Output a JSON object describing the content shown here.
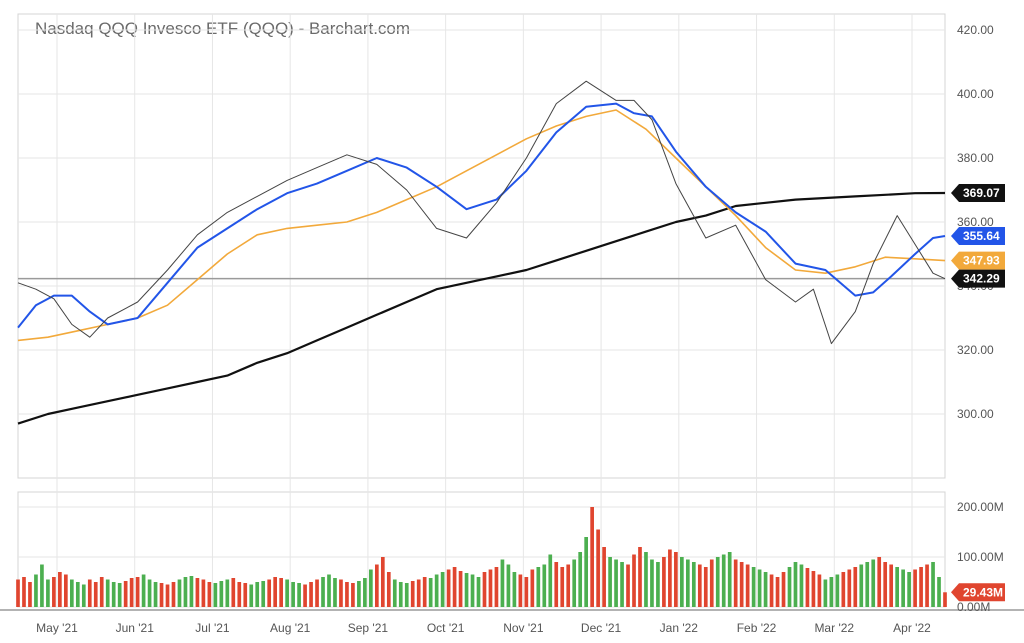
{
  "chart_data": {
    "type": "line",
    "title": "Nasdaq QQQ Invesco ETF (QQQ) - Barchart.com",
    "price_axis": {
      "ylim": [
        280,
        425
      ],
      "ticks": [
        "420.00",
        "400.00",
        "380.00",
        "360.00",
        "340.00",
        "320.00",
        "300.00"
      ]
    },
    "volume_axis": {
      "ylim": [
        0,
        230
      ],
      "unit": "M",
      "ticks": [
        "200.00M",
        "100.00M",
        "0.00M"
      ]
    },
    "x_labels": [
      "May '21",
      "Jun '21",
      "Jul '21",
      "Aug '21",
      "Sep '21",
      "Oct '21",
      "Nov '21",
      "Dec '21",
      "Jan '22",
      "Feb '22",
      "Mar '22",
      "Apr '22"
    ],
    "last_values": [
      {
        "label": "369.07",
        "color": "#111111"
      },
      {
        "label": "355.64",
        "color": "#2255e8"
      },
      {
        "label": "347.93",
        "color": "#f2a93b"
      },
      {
        "label": "342.29",
        "color": "#111111"
      },
      {
        "label": "29.43M",
        "color": "#e0452f"
      }
    ],
    "reference_line": 342.29,
    "series": [
      {
        "color": "#111111",
        "points": [
          [
            0,
            297
          ],
          [
            5,
            300
          ],
          [
            10,
            302
          ],
          [
            15,
            304
          ],
          [
            20,
            306
          ],
          [
            25,
            308
          ],
          [
            30,
            310
          ],
          [
            35,
            312
          ],
          [
            40,
            316
          ],
          [
            45,
            319
          ],
          [
            50,
            323
          ],
          [
            55,
            327
          ],
          [
            60,
            331
          ],
          [
            65,
            335
          ],
          [
            70,
            339
          ],
          [
            75,
            341
          ],
          [
            80,
            343
          ],
          [
            85,
            345
          ],
          [
            90,
            348
          ],
          [
            95,
            351
          ],
          [
            100,
            354
          ],
          [
            105,
            357
          ],
          [
            110,
            360
          ],
          [
            115,
            362
          ],
          [
            120,
            365
          ],
          [
            125,
            366
          ],
          [
            130,
            367
          ],
          [
            135,
            367.5
          ],
          [
            140,
            368
          ],
          [
            145,
            368.5
          ],
          [
            150,
            369
          ],
          [
            155,
            369.07
          ]
        ]
      },
      {
        "color": "#f2a93b",
        "points": [
          [
            0,
            323
          ],
          [
            5,
            324
          ],
          [
            10,
            326
          ],
          [
            15,
            328
          ],
          [
            20,
            330
          ],
          [
            25,
            334
          ],
          [
            30,
            342
          ],
          [
            35,
            350
          ],
          [
            40,
            356
          ],
          [
            45,
            358
          ],
          [
            50,
            359
          ],
          [
            55,
            360
          ],
          [
            60,
            363
          ],
          [
            65,
            367
          ],
          [
            70,
            371
          ],
          [
            75,
            376
          ],
          [
            80,
            381
          ],
          [
            85,
            386
          ],
          [
            90,
            390
          ],
          [
            95,
            393
          ],
          [
            100,
            395
          ],
          [
            105,
            389
          ],
          [
            110,
            380
          ],
          [
            115,
            371
          ],
          [
            120,
            362
          ],
          [
            125,
            352
          ],
          [
            130,
            345
          ],
          [
            135,
            344
          ],
          [
            140,
            346
          ],
          [
            145,
            349
          ],
          [
            150,
            348.5
          ],
          [
            155,
            347.93
          ]
        ]
      },
      {
        "color": "#2255e8",
        "points": [
          [
            0,
            327
          ],
          [
            3,
            334
          ],
          [
            6,
            337
          ],
          [
            9,
            337
          ],
          [
            12,
            332
          ],
          [
            15,
            328
          ],
          [
            20,
            330
          ],
          [
            25,
            341
          ],
          [
            30,
            352
          ],
          [
            35,
            358
          ],
          [
            40,
            364
          ],
          [
            45,
            369
          ],
          [
            50,
            372
          ],
          [
            55,
            376
          ],
          [
            60,
            380
          ],
          [
            65,
            377
          ],
          [
            70,
            371
          ],
          [
            75,
            364
          ],
          [
            80,
            367
          ],
          [
            85,
            376
          ],
          [
            90,
            388
          ],
          [
            95,
            396
          ],
          [
            100,
            397
          ],
          [
            103,
            394
          ],
          [
            106,
            393
          ],
          [
            110,
            382
          ],
          [
            115,
            371
          ],
          [
            120,
            363
          ],
          [
            125,
            357
          ],
          [
            130,
            347
          ],
          [
            135,
            345
          ],
          [
            140,
            337
          ],
          [
            143,
            338
          ],
          [
            146,
            343
          ],
          [
            150,
            350
          ],
          [
            153,
            355
          ],
          [
            155,
            355.64
          ]
        ]
      },
      {
        "color": "#444444",
        "points": [
          [
            0,
            341
          ],
          [
            3,
            339
          ],
          [
            6,
            336
          ],
          [
            9,
            328
          ],
          [
            12,
            324
          ],
          [
            15,
            330
          ],
          [
            20,
            335
          ],
          [
            25,
            345
          ],
          [
            30,
            356
          ],
          [
            35,
            363
          ],
          [
            40,
            368
          ],
          [
            45,
            373
          ],
          [
            50,
            377
          ],
          [
            55,
            381
          ],
          [
            60,
            378
          ],
          [
            65,
            370
          ],
          [
            70,
            358
          ],
          [
            75,
            355
          ],
          [
            80,
            366
          ],
          [
            85,
            380
          ],
          [
            90,
            397
          ],
          [
            95,
            404
          ],
          [
            100,
            398
          ],
          [
            103,
            398
          ],
          [
            106,
            392
          ],
          [
            110,
            372
          ],
          [
            115,
            355
          ],
          [
            120,
            359
          ],
          [
            125,
            342
          ],
          [
            130,
            335
          ],
          [
            133,
            339
          ],
          [
            136,
            322
          ],
          [
            140,
            332
          ],
          [
            143,
            347
          ],
          [
            147,
            362
          ],
          [
            150,
            353
          ],
          [
            153,
            344
          ],
          [
            155,
            342.29
          ]
        ]
      }
    ],
    "volume": {
      "values": [
        55,
        60,
        50,
        65,
        85,
        55,
        60,
        70,
        65,
        55,
        50,
        45,
        55,
        50,
        60,
        55,
        50,
        48,
        52,
        58,
        60,
        65,
        55,
        50,
        48,
        45,
        50,
        55,
        60,
        62,
        58,
        55,
        50,
        48,
        52,
        55,
        58,
        50,
        48,
        45,
        50,
        52,
        55,
        60,
        58,
        55,
        50,
        48,
        45,
        50,
        55,
        60,
        65,
        58,
        55,
        50,
        48,
        52,
        58,
        75,
        85,
        100,
        70,
        55,
        50,
        48,
        52,
        55,
        60,
        58,
        65,
        70,
        75,
        80,
        72,
        68,
        65,
        60,
        70,
        75,
        80,
        95,
        85,
        70,
        65,
        60,
        75,
        80,
        85,
        105,
        90,
        80,
        85,
        95,
        110,
        140,
        200,
        155,
        120,
        100,
        95,
        90,
        85,
        105,
        120,
        110,
        95,
        90,
        100,
        115,
        110,
        100,
        95,
        90,
        85,
        80,
        95,
        100,
        105,
        110,
        95,
        90,
        85,
        80,
        75,
        70,
        65,
        60,
        70,
        80,
        90,
        85,
        78,
        72,
        65,
        55,
        60,
        65,
        70,
        75,
        80,
        85,
        90,
        95,
        100,
        90,
        85,
        80,
        75,
        70,
        75,
        80,
        85,
        90,
        60,
        29.43
      ],
      "colors": [
        "#e0452f",
        "#4caf50"
      ]
    }
  }
}
